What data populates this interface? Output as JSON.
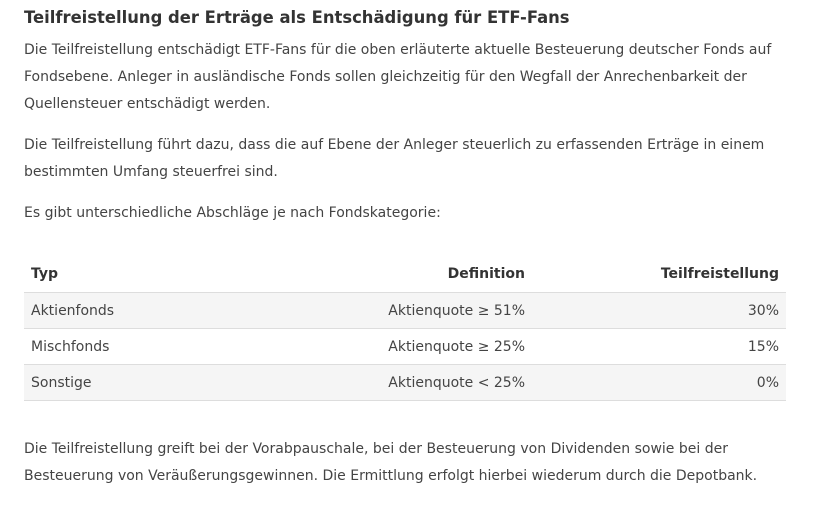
{
  "article": {
    "heading": "Teilfreistellung der Erträge als Entschädigung für ETF-Fans",
    "paragraphs": [
      "Die Teilfreistellung entschädigt ETF-Fans für die oben erläuterte aktuelle Besteuerung deutscher Fonds auf Fondsebene. Anleger in ausländische Fonds sollen gleichzeitig für den Wegfall der Anrechenbarkeit der Quellensteuer entschädigt werden.",
      "Die Teilfreistellung führt dazu, dass die auf Ebene der Anleger steuerlich zu erfassenden Erträge in einem bestimmten Umfang steuerfrei sind.",
      "Es gibt unterschiedliche Abschläge je nach Fondskategorie:",
      "Die Teilfreistellung greift bei der Vorabpauschale, bei der Besteuerung von Dividenden sowie bei der Besteuerung von Veräußerungsgewinnen. Die Ermittlung erfolgt hierbei wiederum durch die Depotbank."
    ]
  },
  "table": {
    "headers": [
      "Typ",
      "Definition",
      "Teilfreistellung"
    ],
    "rows": [
      [
        "Aktienfonds",
        "Aktienquote ≥ 51%",
        "30%"
      ],
      [
        "Mischfonds",
        "Aktienquote ≥ 25%",
        "15%"
      ],
      [
        "Sonstige",
        "Aktienquote < 25%",
        "0%"
      ]
    ]
  }
}
